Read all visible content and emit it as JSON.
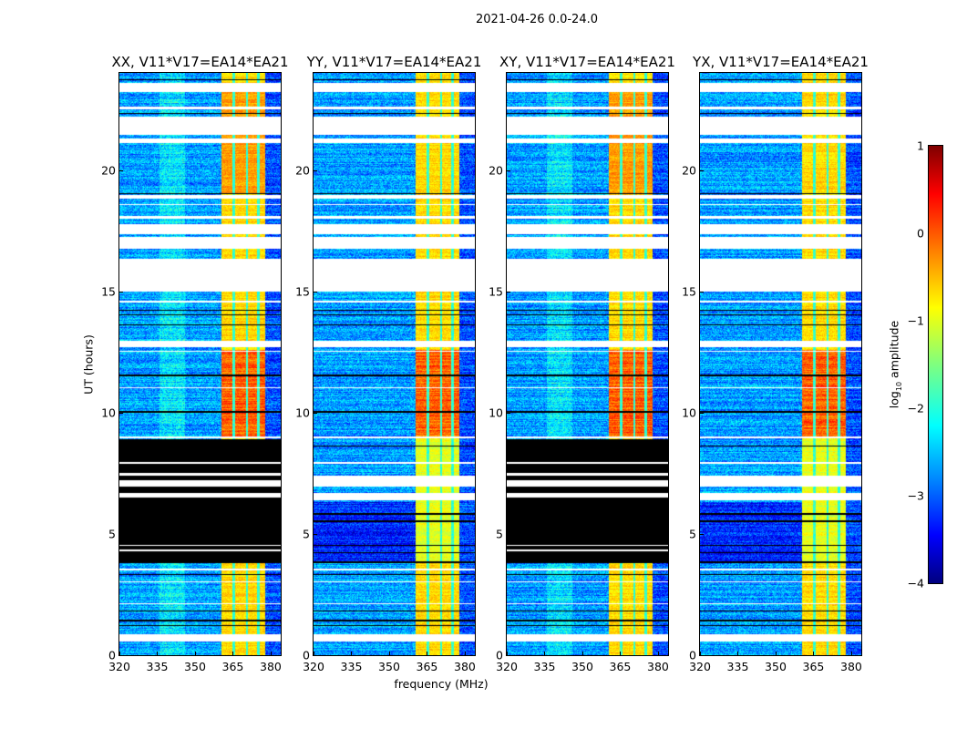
{
  "chart_data": {
    "type": "heatmap",
    "title": "2021-04-26 0.0-24.0",
    "xlabel": "frequency (MHz)",
    "ylabel": "UT (hours)",
    "xlim": [
      320,
      384
    ],
    "ylim": [
      0,
      24
    ],
    "xticks": [
      "320",
      "335",
      "350",
      "365",
      "380"
    ],
    "xtick_values": [
      320,
      335,
      350,
      365,
      380
    ],
    "yticks": [
      "0",
      "5",
      "10",
      "15",
      "20"
    ],
    "ytick_values": [
      0,
      5,
      10,
      15,
      20
    ],
    "colorbar": {
      "label_prefix": "log",
      "label_sub": "10",
      "label_suffix": " amplitude",
      "range": [
        -4,
        1
      ],
      "ticks": [
        "1",
        "0",
        "−1",
        "−2",
        "−3",
        "−4"
      ],
      "tick_values": [
        1,
        0,
        -1,
        -2,
        -3,
        -4
      ],
      "colormap": "jet"
    },
    "panels": [
      {
        "title": "XX, V11*V17=EA14*EA21",
        "product": "XX",
        "zero_block": true,
        "seed": 11
      },
      {
        "title": "YY, V11*V17=EA14*EA21",
        "product": "YY",
        "zero_block": false,
        "seed": 23
      },
      {
        "title": "XY, V11*V17=EA14*EA21",
        "product": "XY",
        "zero_block": true,
        "seed": 37
      },
      {
        "title": "YX, V11*V17=EA14*EA21",
        "product": "YX",
        "zero_block": false,
        "seed": 51
      }
    ],
    "bright_band_mhz": [
      360.5,
      378
    ],
    "band_gaps_mhz": [
      365.3,
      370.6,
      375.1
    ],
    "background_log_amp": -2.6,
    "band_log_amp": -0.7,
    "peak_hours": [
      9.0,
      12.6
    ],
    "peak_log_amp": -0.1,
    "flagged_hours": [
      [
        23.2,
        23.6
      ],
      [
        22.5,
        22.6
      ],
      [
        22.1,
        22.2
      ],
      [
        21.45,
        22.1
      ],
      [
        21.1,
        21.3
      ],
      [
        18.8,
        18.95
      ],
      [
        18.55,
        18.6
      ],
      [
        18.0,
        18.1
      ],
      [
        17.35,
        17.75
      ],
      [
        16.75,
        17.25
      ],
      [
        15.0,
        16.35
      ],
      [
        14.55,
        14.6
      ],
      [
        12.7,
        12.95
      ],
      [
        12.5,
        12.55
      ],
      [
        11.0,
        11.05
      ],
      [
        8.95,
        9.0
      ],
      [
        3.5,
        3.55
      ],
      [
        3.0,
        3.05
      ],
      [
        2.1,
        2.15
      ],
      [
        0.55,
        0.85
      ]
    ],
    "zero_hours": [
      [
        23.7,
        23.75
      ],
      [
        22.3,
        22.35
      ],
      [
        19.0,
        19.05
      ],
      [
        17.2,
        17.25
      ],
      [
        14.2,
        14.25
      ],
      [
        14.0,
        14.05
      ],
      [
        13.6,
        13.65
      ],
      [
        11.5,
        11.55
      ],
      [
        10.0,
        10.05
      ],
      [
        3.8,
        3.85
      ],
      [
        3.3,
        3.35
      ],
      [
        1.8,
        1.85
      ],
      [
        1.4,
        1.45
      ],
      [
        1.2,
        1.25
      ]
    ],
    "zero_block_hours": [
      3.85,
      8.9
    ],
    "zero_block_flagged": [
      [
        7.9,
        7.95
      ],
      [
        7.4,
        7.5
      ],
      [
        6.95,
        7.2
      ],
      [
        6.5,
        6.7
      ],
      [
        4.5,
        4.55
      ],
      [
        4.3,
        4.35
      ]
    ],
    "unblocked_flagged": [
      [
        7.9,
        7.95
      ],
      [
        6.95,
        7.4
      ],
      [
        6.4,
        6.7
      ]
    ],
    "unblocked_zero": [
      [
        8.6,
        8.65
      ],
      [
        5.8,
        5.85
      ],
      [
        5.5,
        5.55
      ],
      [
        4.5,
        4.55
      ],
      [
        4.2,
        4.25
      ]
    ],
    "unblocked_dim_hours": [
      3.85,
      6.3
    ]
  }
}
